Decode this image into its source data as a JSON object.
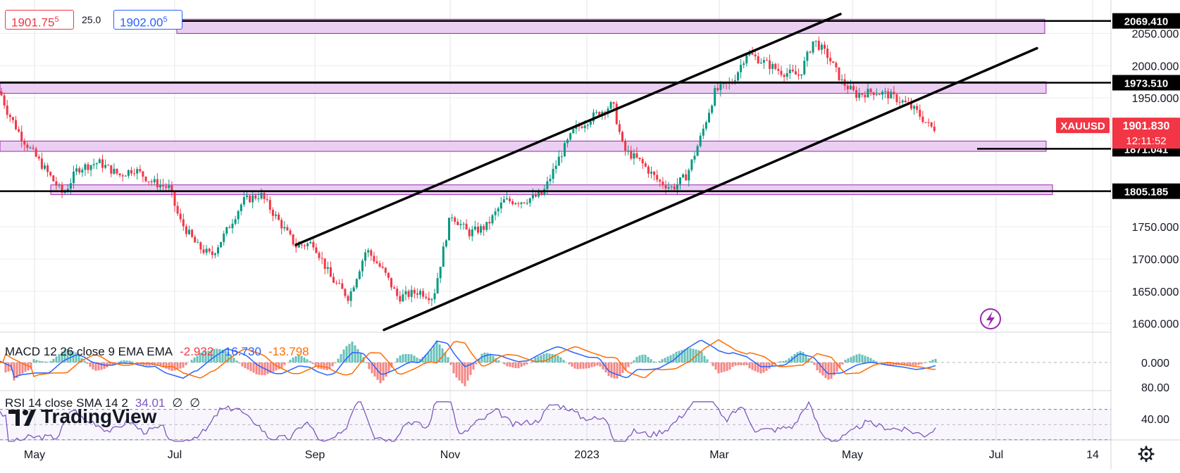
{
  "header": {
    "sell_price": "1901.75",
    "sell_price_sup": "5",
    "spread": "25.0",
    "buy_price": "1902.00",
    "buy_price_sup": "5"
  },
  "symbol_tag": "XAUUSD",
  "last_price": "1901.830",
  "countdown": "12:11:52",
  "branding": "TradingView",
  "chart_data": {
    "type": "candlestick",
    "symbol": "XAUUSD",
    "x_axis_labels": [
      "May",
      "Jul",
      "Sep",
      "Nov",
      "2023",
      "Mar",
      "May",
      "Jul",
      "14"
    ],
    "y_ticks": [
      1600,
      1650,
      1700,
      1750,
      1950,
      2000,
      2050
    ],
    "y_tick_labels": [
      "1600.000",
      "1650.000",
      "1700.000",
      "1750.000",
      "1950.000",
      "2000.000",
      "2050.000"
    ],
    "ylim": [
      1575,
      2080
    ],
    "horizontal_levels": [
      {
        "value": 2069.41,
        "label": "2069.410"
      },
      {
        "value": 1973.51,
        "label": "1973.510"
      },
      {
        "value": 1871.041,
        "label": "1871.041"
      },
      {
        "value": 1805.185,
        "label": "1805.185"
      }
    ],
    "price_path": [
      [
        0,
        1960
      ],
      [
        10,
        1930
      ],
      [
        30,
        1890
      ],
      [
        50,
        1860
      ],
      [
        70,
        1830
      ],
      [
        90,
        1800
      ],
      [
        110,
        1840
      ],
      [
        140,
        1850
      ],
      [
        170,
        1830
      ],
      [
        190,
        1840
      ],
      [
        215,
        1820
      ],
      [
        240,
        1810
      ],
      [
        255,
        1760
      ],
      [
        280,
        1720
      ],
      [
        300,
        1705
      ],
      [
        320,
        1740
      ],
      [
        345,
        1790
      ],
      [
        370,
        1800
      ],
      [
        395,
        1760
      ],
      [
        420,
        1720
      ],
      [
        445,
        1725
      ],
      [
        470,
        1670
      ],
      [
        495,
        1640
      ],
      [
        520,
        1715
      ],
      [
        545,
        1680
      ],
      [
        565,
        1640
      ],
      [
        595,
        1650
      ],
      [
        615,
        1640
      ],
      [
        640,
        1770
      ],
      [
        665,
        1740
      ],
      [
        690,
        1750
      ],
      [
        715,
        1790
      ],
      [
        740,
        1790
      ],
      [
        770,
        1800
      ],
      [
        795,
        1860
      ],
      [
        815,
        1900
      ],
      [
        840,
        1920
      ],
      [
        870,
        1940
      ],
      [
        885,
        1870
      ],
      [
        910,
        1850
      ],
      [
        935,
        1820
      ],
      [
        955,
        1810
      ],
      [
        975,
        1830
      ],
      [
        995,
        1890
      ],
      [
        1015,
        1960
      ],
      [
        1040,
        1975
      ],
      [
        1060,
        2020
      ],
      [
        1085,
        2005
      ],
      [
        1110,
        1990
      ],
      [
        1135,
        1985
      ],
      [
        1155,
        2040
      ],
      [
        1175,
        2015
      ],
      [
        1195,
        1975
      ],
      [
        1215,
        1955
      ],
      [
        1240,
        1960
      ],
      [
        1260,
        1955
      ],
      [
        1280,
        1945
      ],
      [
        1300,
        1930
      ],
      [
        1320,
        1905
      ],
      [
        1330,
        1901.83
      ]
    ],
    "trend_lines": [
      {
        "from": [
          420,
          1722
        ],
        "to": [
          1193,
          2080
        ]
      },
      {
        "from": [
          545,
          1590
        ],
        "to": [
          1472,
          2027
        ]
      }
    ],
    "level_bands": [
      {
        "low": 2050,
        "high": 2072
      },
      {
        "low": 1957,
        "high": 1975
      },
      {
        "low": 1867,
        "high": 1883
      },
      {
        "low": 1800,
        "high": 1815
      }
    ],
    "panels": [
      {
        "name": "MACD 12 26 close 9 EMA EMA",
        "values": [
          "-2.932",
          "-16.730",
          "-13.798"
        ],
        "value_colors": [
          "#f23645",
          "#2962ff",
          "#ff6d00"
        ],
        "y_ticks": [
          "0.000"
        ]
      },
      {
        "name": "RSI 14 close SMA 14 2",
        "values": [
          "34.01",
          "∅",
          "∅"
        ],
        "value_colors": [
          "#7e57c2",
          "#131722",
          "#131722"
        ],
        "y_ticks": [
          "80.00",
          "40.00"
        ]
      }
    ]
  },
  "colors": {
    "up": "#089981",
    "down": "#f23645",
    "band_fill": "#e8c7f0",
    "band_border": "#9c27b0",
    "macd": "#2962ff",
    "signal": "#ff6d00",
    "rsi": "#7e57c2",
    "price_tag": "#f23645"
  },
  "icons": {
    "lightning": "lightning-icon",
    "settings": "gear-icon"
  }
}
